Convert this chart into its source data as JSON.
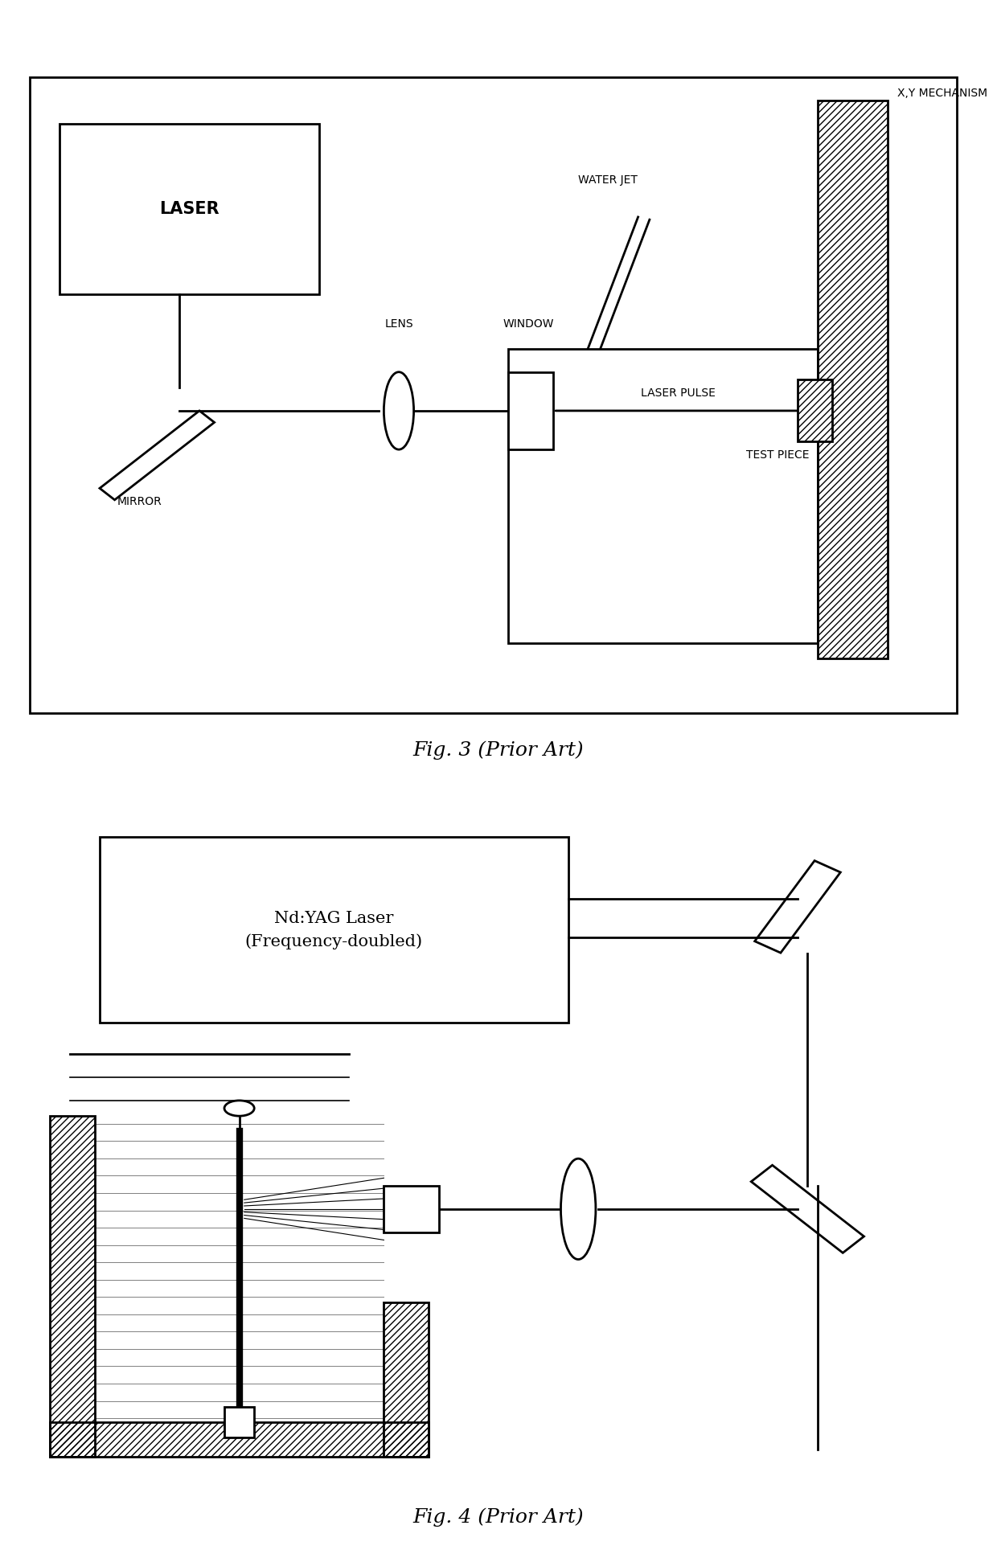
{
  "bg_color": "#ffffff",
  "line_color": "#000000",
  "fig3_title": "Fig. 3 (Prior Art)",
  "fig4_title": "Fig. 4 (Prior Art)",
  "fig4_laser_label": "Nd:YAG Laser\n(Frequency-doubled)"
}
